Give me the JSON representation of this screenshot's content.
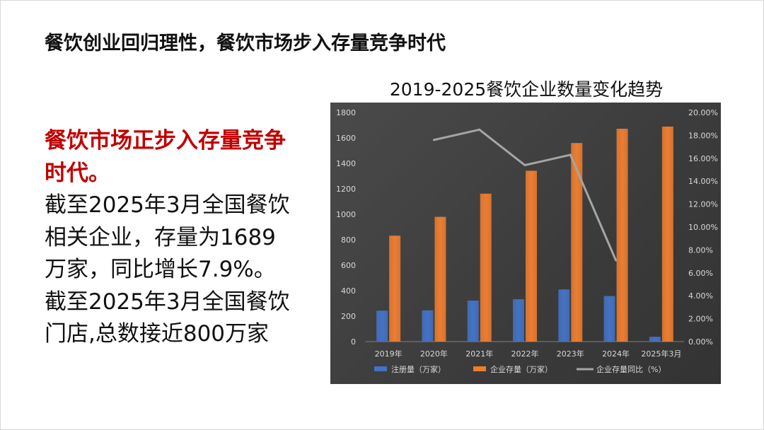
{
  "headline": "餐饮创业回归理性，餐饮市场步入存量竞争时代",
  "left_text": {
    "lead_line1": "餐饮市场正步入存量竞争",
    "lead_line2": "时代。",
    "body_line1": "截至2025年3月全国餐饮",
    "body_line2": "相关企业，存量为1689",
    "body_line3": "万家，同比增长7.9%。",
    "body_line4": "截至2025年3月全国餐饮",
    "body_line5": "门店,总数接近800万家"
  },
  "chart_data": {
    "type": "bar",
    "title": "2019-2025餐饮企业数量变化趋势",
    "categories": [
      "2019年",
      "2020年",
      "2021年",
      "2022年",
      "2023年",
      "2024年",
      "2025年3月"
    ],
    "y_left": {
      "range": [
        0,
        1800
      ],
      "step": 200,
      "ticks": [
        "0",
        "200",
        "400",
        "600",
        "800",
        "1000",
        "1200",
        "1400",
        "1600",
        "1800"
      ]
    },
    "y_right": {
      "range": [
        0,
        20
      ],
      "step": 2,
      "ticks": [
        "0.00%",
        "2.00%",
        "4.00%",
        "6.00%",
        "8.00%",
        "10.00%",
        "12.00%",
        "14.00%",
        "16.00%",
        "18.00%",
        "20.00%"
      ]
    },
    "series": [
      {
        "name": "注册量（万家）",
        "type": "bar",
        "axis": "left",
        "color": "#4472c4",
        "values": [
          243,
          245,
          322,
          333,
          410,
          358,
          38
        ]
      },
      {
        "name": "企业存量（万家）",
        "type": "bar",
        "axis": "left",
        "color": "#ed7d31",
        "values": [
          832,
          980,
          1162,
          1342,
          1560,
          1672,
          1689
        ]
      },
      {
        "name": "企业存量同比（%）",
        "type": "line",
        "axis": "right",
        "color": "#a5a5a5",
        "values": [
          null,
          17.6,
          18.5,
          15.4,
          16.3,
          7.1,
          null
        ]
      }
    ],
    "legend_position": "bottom",
    "grid": false
  }
}
